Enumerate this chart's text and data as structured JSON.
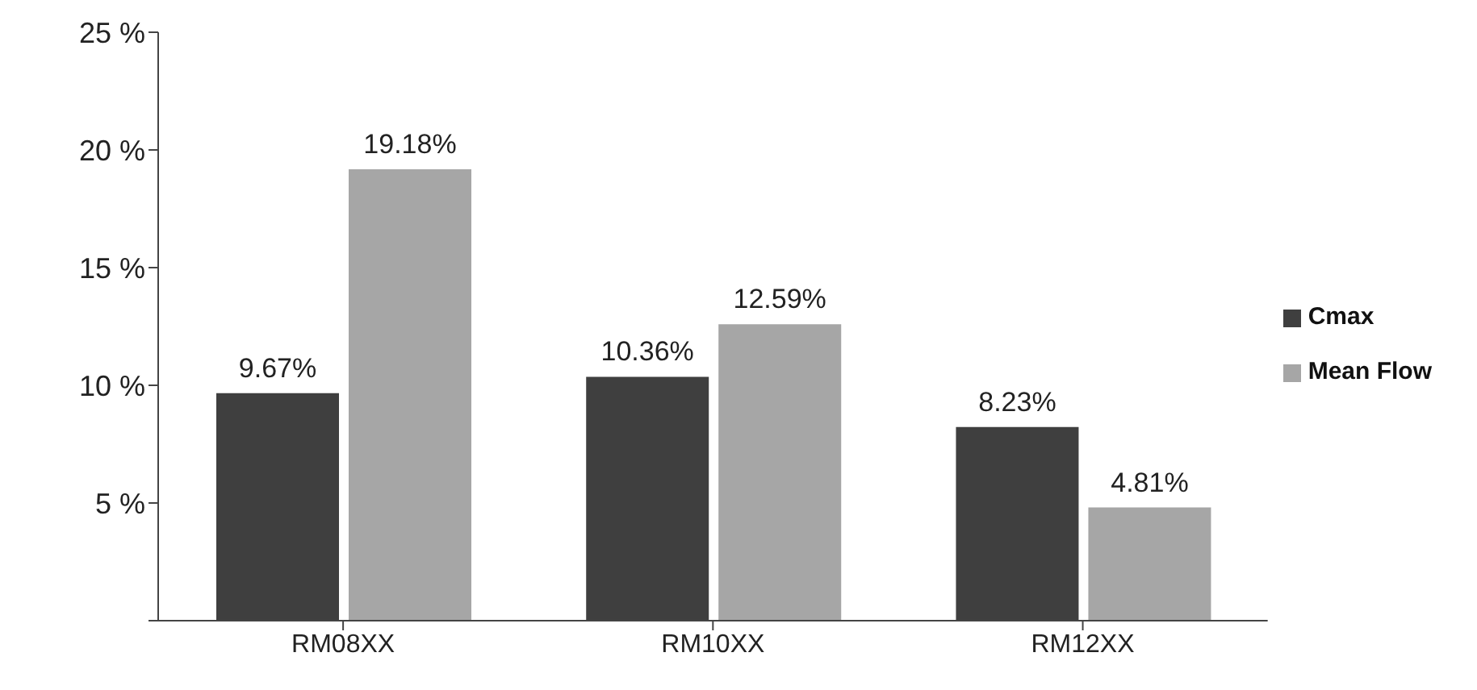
{
  "chart_data": {
    "type": "bar",
    "categories": [
      "RM08XX",
      "RM10XX",
      "RM12XX"
    ],
    "series": [
      {
        "name": "Cmax",
        "color": "#3f3f3f",
        "values": [
          9.67,
          10.36,
          8.23
        ],
        "value_labels": [
          "9.67%",
          "10.36%",
          "8.23%"
        ]
      },
      {
        "name": "Mean Flow",
        "color": "#a6a6a6",
        "values": [
          19.18,
          12.59,
          4.81
        ],
        "value_labels": [
          "19.18%",
          "12.59%",
          "4.81%"
        ]
      }
    ],
    "ylim": [
      0,
      25
    ],
    "yticks": [
      {
        "value": 0,
        "label": null
      },
      {
        "value": 5,
        "label": "5 %"
      },
      {
        "value": 10,
        "label": "10 %"
      },
      {
        "value": 15,
        "label": "15 %"
      },
      {
        "value": 20,
        "label": "20 %"
      },
      {
        "value": 25,
        "label": "25 %"
      }
    ],
    "grid": false,
    "legend": "right"
  }
}
